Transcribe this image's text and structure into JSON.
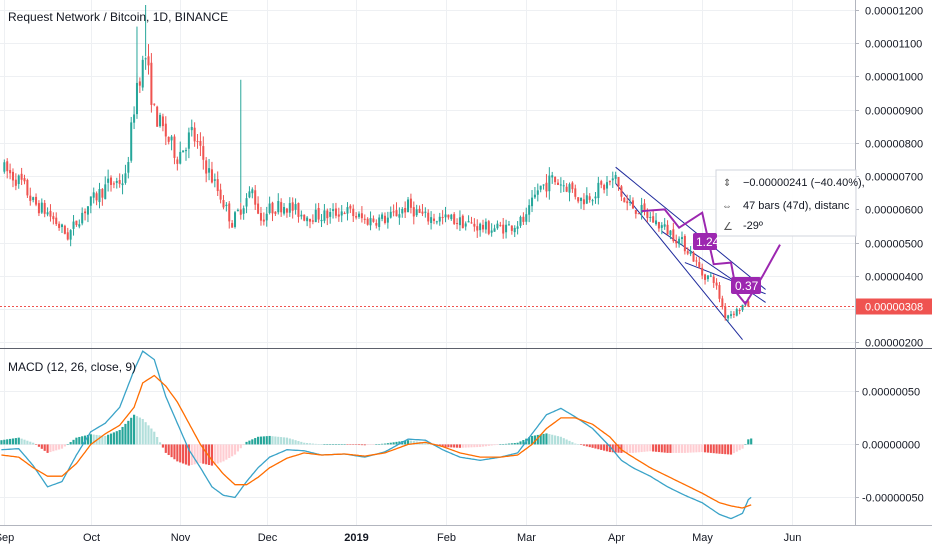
{
  "chart_data": [
    {
      "type": "candlestick",
      "title": "Request Network / Bitcoin, 1D, BINANCE",
      "y_ticks": [
        "0.00001200",
        "0.00001100",
        "0.00001000",
        "0.00000900",
        "0.00000800",
        "0.00000700",
        "0.00000600",
        "0.00000500",
        "0.00000400",
        "0.00000300",
        "0.00000200"
      ],
      "y_tick_values": [
        1200,
        1100,
        1000,
        900,
        800,
        700,
        600,
        500,
        400,
        300,
        200
      ],
      "ylim": [
        183,
        1230
      ],
      "y_unit": "1e-8 BTC",
      "x_ticks": [
        "Sep",
        "Oct",
        "Nov",
        "Dec",
        "2019",
        "Feb",
        "Mar",
        "Apr",
        "May",
        "Jun"
      ],
      "x_tick_days": [
        0,
        30,
        61,
        91,
        122,
        153,
        181,
        212,
        242,
        273
      ],
      "xlim": [
        -1.5,
        295
      ],
      "x_unit": "days since 1 Sep 2018",
      "last_price": {
        "label": "0.00000308",
        "value": 308,
        "color": "#ef5350"
      },
      "candles_anchor": [
        [
          0,
          720
        ],
        [
          6,
          680
        ],
        [
          10,
          620
        ],
        [
          15,
          590
        ],
        [
          22,
          520
        ],
        [
          27,
          590
        ],
        [
          32,
          640
        ],
        [
          36,
          675
        ],
        [
          42,
          690
        ],
        [
          46,
          980
        ],
        [
          49,
          1060
        ],
        [
          52,
          890
        ],
        [
          55,
          840
        ],
        [
          60,
          760
        ],
        [
          65,
          830
        ],
        [
          70,
          730
        ],
        [
          75,
          640
        ],
        [
          79,
          560
        ],
        [
          83,
          620
        ],
        [
          86,
          655
        ],
        [
          89,
          570
        ],
        [
          92,
          600
        ],
        [
          97,
          615
        ],
        [
          104,
          582
        ],
        [
          112,
          582
        ],
        [
          118,
          598
        ],
        [
          125,
          567
        ],
        [
          133,
          572
        ],
        [
          140,
          610
        ],
        [
          146,
          575
        ],
        [
          155,
          570
        ],
        [
          162,
          554
        ],
        [
          168,
          542
        ],
        [
          175,
          548
        ],
        [
          181,
          570
        ],
        [
          185,
          660
        ],
        [
          190,
          690
        ],
        [
          196,
          668
        ],
        [
          200,
          628
        ],
        [
          205,
          655
        ],
        [
          212,
          690
        ],
        [
          215,
          620
        ],
        [
          220,
          600
        ],
        [
          226,
          560
        ],
        [
          231,
          530
        ],
        [
          235,
          500
        ],
        [
          238,
          470
        ],
        [
          242,
          405
        ],
        [
          246,
          390
        ],
        [
          250,
          280
        ],
        [
          254,
          295
        ],
        [
          256,
          310
        ],
        [
          258,
          315
        ]
      ],
      "candle_colors": {
        "up": "#26a69a",
        "down": "#ef5350"
      },
      "annotations": {
        "price_range": "−0.00000241 (−40.40%),",
        "bars_range": "47 bars (47d), distanc",
        "angle": "-29º",
        "ratio_1": "1.24",
        "ratio_2": "0.37",
        "pattern": [
          [
            221,
            595
          ],
          [
            229,
            600
          ],
          [
            234,
            545
          ],
          [
            242,
            590
          ],
          [
            246,
            435
          ],
          [
            252,
            440
          ],
          [
            254,
            348
          ],
          [
            257,
            316
          ],
          [
            263,
            400
          ],
          [
            269,
            494
          ]
        ],
        "channel_upper": [
          [
            212,
            727
          ],
          [
            264,
            359
          ]
        ],
        "channel_lower": [
          [
            212,
            678
          ],
          [
            256,
            208
          ]
        ],
        "wedge_upper": [
          [
            236,
            440
          ],
          [
            264,
            346
          ]
        ],
        "wedge_lower": [
          [
            228,
            534
          ],
          [
            264,
            320
          ]
        ]
      }
    },
    {
      "type": "line",
      "title": "MACD (12, 26, close, 9)",
      "y_ticks": [
        "0.00000050",
        "0.00000000",
        "-0.00000050"
      ],
      "y_tick_values": [
        50,
        0,
        -50
      ],
      "ylim": [
        -76,
        90
      ],
      "y_unit": "1e-8 BTC",
      "series": [
        {
          "name": "MACD",
          "color": "#3aa3c8",
          "values_anchor": [
            [
              -1,
              -5
            ],
            [
              5,
              -4
            ],
            [
              10,
              -20
            ],
            [
              15,
              -40
            ],
            [
              20,
              -35
            ],
            [
              25,
              -10
            ],
            [
              30,
              12
            ],
            [
              35,
              20
            ],
            [
              40,
              35
            ],
            [
              45,
              70
            ],
            [
              48,
              88
            ],
            [
              52,
              80
            ],
            [
              56,
              45
            ],
            [
              60,
              20
            ],
            [
              64,
              -5
            ],
            [
              68,
              -22
            ],
            [
              72,
              -40
            ],
            [
              76,
              -48
            ],
            [
              80,
              -50
            ],
            [
              84,
              -35
            ],
            [
              88,
              -22
            ],
            [
              92,
              -12
            ],
            [
              98,
              -5
            ],
            [
              104,
              -6
            ],
            [
              110,
              -10
            ],
            [
              118,
              -9
            ],
            [
              125,
              -12
            ],
            [
              132,
              -7
            ],
            [
              140,
              5
            ],
            [
              146,
              4
            ],
            [
              152,
              -5
            ],
            [
              158,
              -12
            ],
            [
              165,
              -15
            ],
            [
              172,
              -12
            ],
            [
              178,
              -8
            ],
            [
              183,
              10
            ],
            [
              188,
              28
            ],
            [
              193,
              34
            ],
            [
              198,
              26
            ],
            [
              204,
              15
            ],
            [
              210,
              -2
            ],
            [
              214,
              -15
            ],
            [
              218,
              -22
            ],
            [
              224,
              -30
            ],
            [
              230,
              -40
            ],
            [
              236,
              -48
            ],
            [
              242,
              -55
            ],
            [
              248,
              -66
            ],
            [
              252,
              -70
            ],
            [
              256,
              -65
            ],
            [
              258,
              -52
            ],
            [
              259,
              -50
            ]
          ]
        },
        {
          "name": "Signal",
          "color": "#ff6d00",
          "values_anchor": [
            [
              -1,
              -10
            ],
            [
              5,
              -12
            ],
            [
              10,
              -22
            ],
            [
              15,
              -30
            ],
            [
              20,
              -30
            ],
            [
              25,
              -18
            ],
            [
              30,
              0
            ],
            [
              35,
              10
            ],
            [
              40,
              18
            ],
            [
              45,
              35
            ],
            [
              48,
              58
            ],
            [
              52,
              65
            ],
            [
              56,
              55
            ],
            [
              60,
              40
            ],
            [
              64,
              20
            ],
            [
              68,
              0
            ],
            [
              72,
              -15
            ],
            [
              76,
              -28
            ],
            [
              80,
              -38
            ],
            [
              84,
              -38
            ],
            [
              88,
              -31
            ],
            [
              92,
              -22
            ],
            [
              98,
              -13
            ],
            [
              104,
              -8
            ],
            [
              110,
              -10
            ],
            [
              118,
              -9
            ],
            [
              125,
              -11
            ],
            [
              132,
              -8
            ],
            [
              140,
              0
            ],
            [
              146,
              2
            ],
            [
              152,
              -2
            ],
            [
              158,
              -8
            ],
            [
              165,
              -12
            ],
            [
              172,
              -12
            ],
            [
              178,
              -10
            ],
            [
              183,
              0
            ],
            [
              188,
              15
            ],
            [
              193,
              25
            ],
            [
              198,
              25
            ],
            [
              204,
              19
            ],
            [
              210,
              7
            ],
            [
              214,
              -5
            ],
            [
              218,
              -12
            ],
            [
              224,
              -22
            ],
            [
              230,
              -30
            ],
            [
              236,
              -38
            ],
            [
              242,
              -46
            ],
            [
              248,
              -55
            ],
            [
              252,
              -58
            ],
            [
              256,
              -60
            ],
            [
              258,
              -58
            ],
            [
              259,
              -57
            ]
          ]
        }
      ],
      "histogram": {
        "colors": {
          "grow_up": "#26a69a",
          "fall_up": "#b2dfdb",
          "fall_down": "#ef5350",
          "grow_down": "#ffcdd2"
        }
      }
    }
  ]
}
